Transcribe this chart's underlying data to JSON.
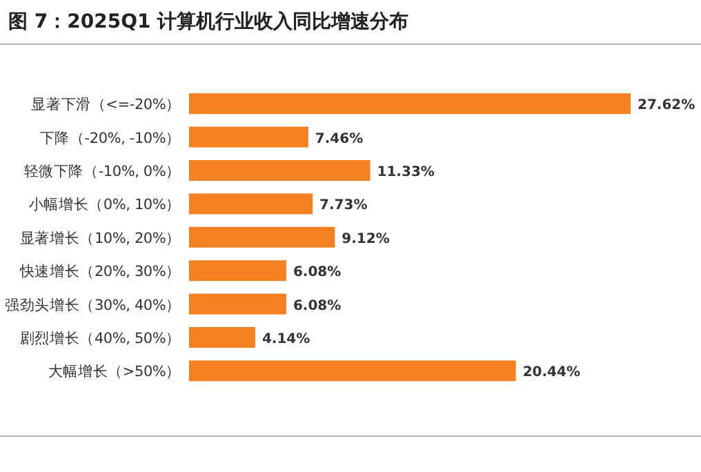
{
  "chart_data": {
    "type": "bar",
    "orientation": "horizontal",
    "title": "图 7：2025Q1 计算机行业收入同比增速分布",
    "categories": [
      "显著下滑（<=-20%）",
      "下降（-20%, -10%）",
      "轻微下降（-10%, 0%）",
      "小幅增长（0%, 10%）",
      "显著增长（10%, 20%）",
      "快速增长（20%, 30%）",
      "强劲头增长（30%, 40%）",
      "剧烈增长（40%, 50%）",
      "大幅增长（>50%）"
    ],
    "values": [
      27.62,
      7.46,
      11.33,
      7.73,
      9.12,
      6.08,
      6.08,
      4.14,
      20.44
    ],
    "value_labels": [
      "27.62%",
      "7.46%",
      "11.33%",
      "7.73%",
      "9.12%",
      "6.08%",
      "6.08%",
      "4.14%",
      "20.44%"
    ],
    "color": "#f68121"
  }
}
